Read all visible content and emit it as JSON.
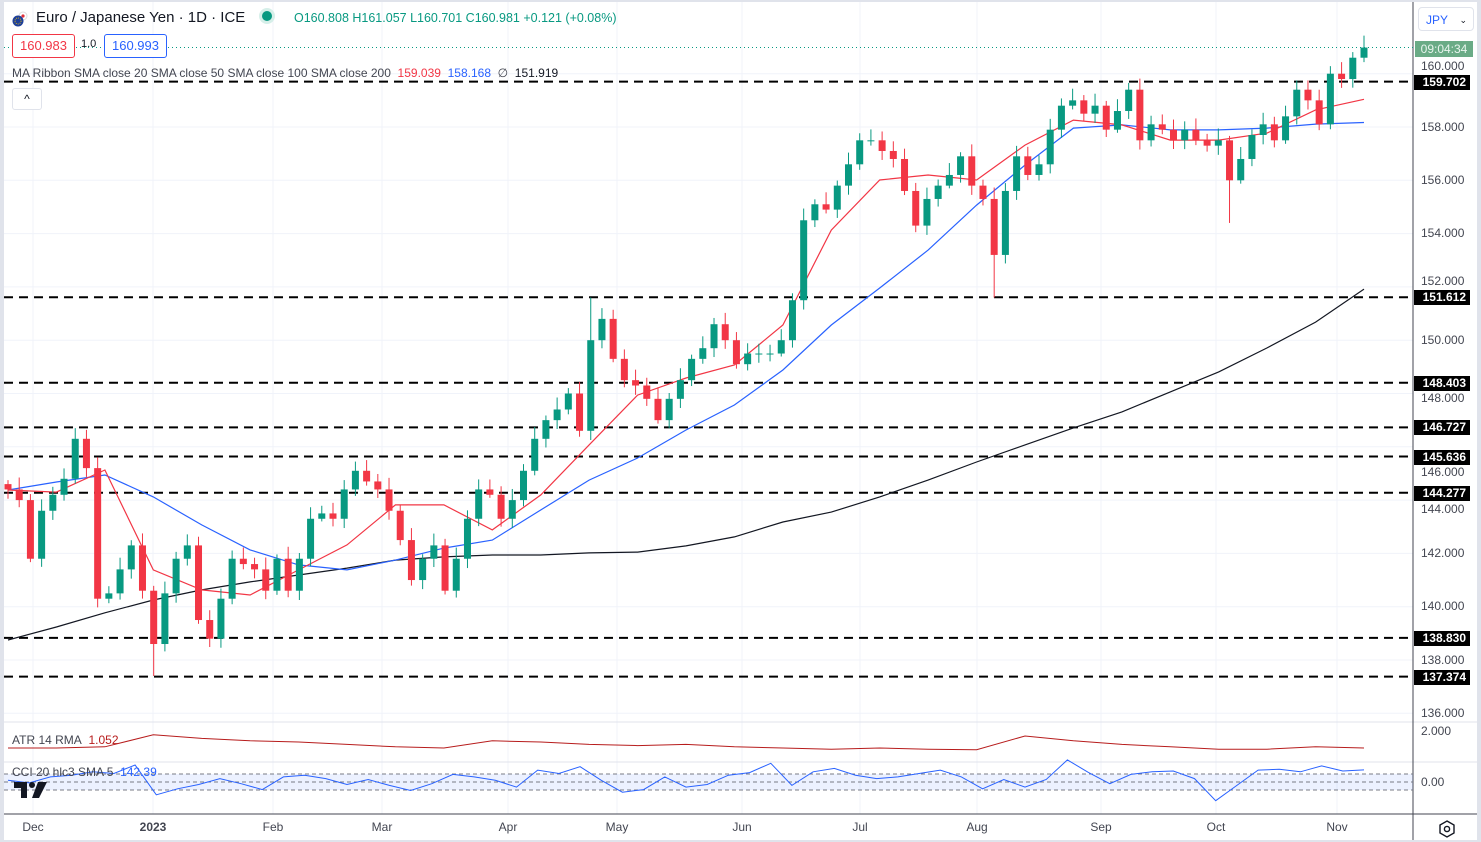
{
  "header": {
    "title": "Euro / Japanese Yen · 1D · ICE",
    "ohlc": "O160.808  H161.057  L160.701  C160.981  +0.121 (+0.08%)",
    "sell_price": "160.983",
    "spread": "1.0",
    "buy_price": "160.993",
    "ma_legend_label": "MA Ribbon SMA close 20 SMA close 50 SMA close 100 SMA close 200",
    "ma20_value": "159.039",
    "ma50_value": "158.168",
    "ma100_value": "∅",
    "ma200_value": "151.919",
    "collapse_icon": "^",
    "market_status": "open"
  },
  "currency_select": {
    "value": "JPY",
    "chevron": "⌄"
  },
  "countdown": "09:04:34",
  "colors": {
    "up": "#089981",
    "down": "#f23645",
    "ma20": "#f23645",
    "ma50": "#2962ff",
    "ma200": "#131722",
    "atr": "#b71c1c",
    "cci": "#2962ff"
  },
  "indicators": {
    "atr_label": "ATR 14 RMA",
    "atr_value": "1.052",
    "atr_axis": "2.000",
    "cci_label": "CCI 20 hlc3 SMA 5",
    "cci_value": "142.39",
    "cci_axis": "0.00"
  },
  "chart_data": {
    "type": "candlestick",
    "symbol": "EUR/JPY",
    "interval": "1D",
    "ylim": [
      135.4,
      162.0
    ],
    "y_ticks": [
      "160.000",
      "158.000",
      "156.000",
      "154.000",
      "152.000",
      "150.000",
      "148.000",
      "146.000",
      "144.000",
      "142.000",
      "140.000",
      "138.000",
      "136.000"
    ],
    "x_ticks": [
      "Dec",
      "2023",
      "Feb",
      "Mar",
      "Apr",
      "May",
      "Jun",
      "Jul",
      "Aug",
      "Sep",
      "Oct",
      "Nov"
    ],
    "closes": [
      144.4,
      144.0,
      141.8,
      143.6,
      144.2,
      144.8,
      146.3,
      145.2,
      140.3,
      140.5,
      141.4,
      142.3,
      140.6,
      138.6,
      140.5,
      141.8,
      142.3,
      139.5,
      138.8,
      140.3,
      141.8,
      141.6,
      141.4,
      140.6,
      141.8,
      140.6,
      141.8,
      143.3,
      143.5,
      143.3,
      144.4,
      145.1,
      144.7,
      144.4,
      143.6,
      142.5,
      141.0,
      141.8,
      142.3,
      140.6,
      141.8,
      143.3,
      144.4,
      144.2,
      143.3,
      144.0,
      145.1,
      146.3,
      147.0,
      147.4,
      148.0,
      146.6,
      150.0,
      150.8,
      149.3,
      148.5,
      148.3,
      147.8,
      147.0,
      147.8,
      148.5,
      149.3,
      149.7,
      150.6,
      150.0,
      149.1,
      149.5,
      149.5,
      149.5,
      150.0,
      151.5,
      154.5,
      155.1,
      154.9,
      155.8,
      156.6,
      157.5,
      157.5,
      157.1,
      156.8,
      155.6,
      154.3,
      155.3,
      155.8,
      156.2,
      156.9,
      155.8,
      155.3,
      153.2,
      155.6,
      156.9,
      156.2,
      156.6,
      157.9,
      158.8,
      159.0,
      158.5,
      158.8,
      157.9,
      158.6,
      159.4,
      157.5,
      158.1,
      157.9,
      157.5,
      157.9,
      157.5,
      157.3,
      157.5,
      156.0,
      156.8,
      157.7,
      158.1,
      157.5,
      158.4,
      159.4,
      159.0,
      158.1,
      160.0,
      159.8,
      160.6,
      160.981
    ],
    "high_overrides": {
      "6": 146.7,
      "52": 151.6
    },
    "low_overrides": {
      "13": 137.4,
      "88": 151.6,
      "109": 154.4
    },
    "ma20": [
      144.38,
      144.3,
      145.13,
      141.38,
      140.63,
      140.44,
      141.38,
      142.32,
      143.82,
      143.82,
      142.88,
      144.19,
      146.07,
      147.94,
      148.58,
      149.07,
      150.57,
      154.13,
      156.01,
      156.2,
      156.01,
      157.32,
      158.26,
      158.08,
      157.51,
      157.51,
      157.77,
      158.64,
      159.039
    ],
    "ma50": [
      144.38,
      144.68,
      144.94,
      144.12,
      143.07,
      142.13,
      141.57,
      141.38,
      141.75,
      142.2,
      142.5,
      143.63,
      144.75,
      145.58,
      146.63,
      147.57,
      148.88,
      150.57,
      151.96,
      153.38,
      155.07,
      156.57,
      157.96,
      158.08,
      157.89,
      157.89,
      157.96,
      158.11,
      158.168
    ],
    "ma200": [
      138.75,
      139.24,
      139.77,
      140.25,
      140.63,
      140.93,
      141.19,
      141.45,
      141.75,
      141.87,
      141.94,
      141.94,
      142.02,
      142.05,
      142.28,
      142.62,
      143.18,
      143.55,
      144.12,
      144.75,
      145.43,
      146.07,
      146.71,
      147.31,
      148.06,
      148.81,
      149.71,
      150.68,
      151.919
    ],
    "levels": [
      "159.702",
      "151.612",
      "148.403",
      "146.727",
      "145.636",
      "144.277",
      "138.830",
      "137.374"
    ],
    "atr": [
      1.05,
      1.05,
      1.1,
      1.6,
      1.45,
      1.35,
      1.3,
      1.2,
      1.1,
      1.05,
      1.35,
      1.3,
      1.2,
      1.15,
      1.2,
      1.1,
      1.05,
      1.0,
      1.05,
      1.0,
      0.98,
      1.55,
      1.35,
      1.2,
      1.1,
      1.0,
      1.0,
      1.1,
      1.052
    ],
    "cci": [
      20,
      -10,
      60,
      80,
      120,
      100,
      200,
      -150,
      -80,
      -30,
      40,
      -20,
      -90,
      60,
      80,
      40,
      -30,
      30,
      -40,
      -100,
      -20,
      90,
      60,
      20,
      -60,
      140,
      100,
      180,
      20,
      -120,
      -90,
      60,
      -60,
      -30,
      80,
      110,
      220,
      -40,
      120,
      160,
      80,
      40,
      60,
      100,
      140,
      60,
      -80,
      30,
      -60,
      30,
      260,
      110,
      -20,
      90,
      120,
      130,
      40,
      -220,
      -40,
      140,
      150,
      120,
      190,
      130,
      142.39
    ]
  }
}
